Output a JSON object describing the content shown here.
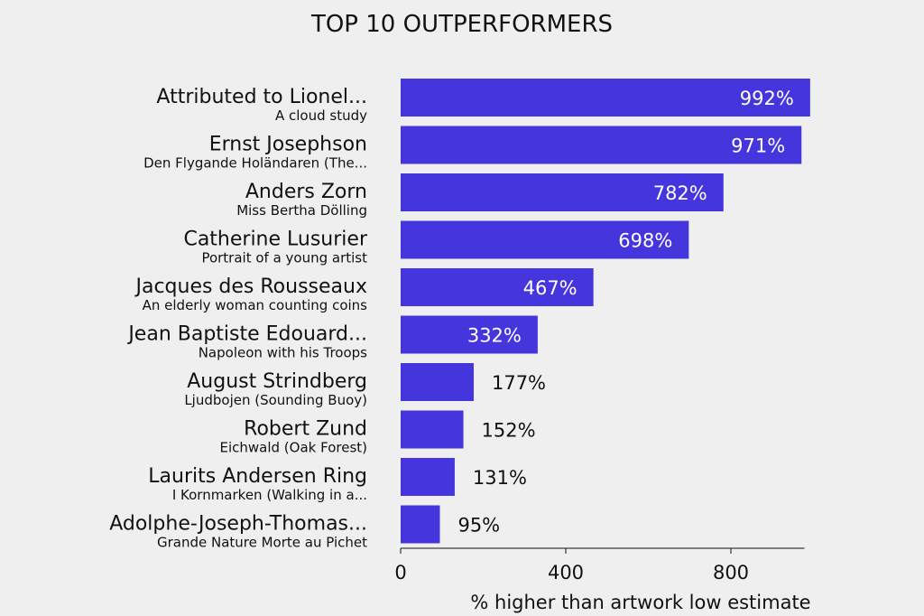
{
  "chart_data": {
    "type": "bar",
    "orientation": "horizontal",
    "title": "TOP 10 OUTPERFORMERS",
    "xlabel": "% higher than artwork low estimate",
    "ylabel": "",
    "xlim": [
      0,
      1000
    ],
    "xticks": [
      0,
      400,
      800
    ],
    "grid": false,
    "legend": "none",
    "bar_color": "#4535dd",
    "categories": [
      {
        "artist": "Attributed to Lionel...",
        "artwork": "A cloud study"
      },
      {
        "artist": "Ernst Josephson",
        "artwork": "Den Flygande Holändaren (The..."
      },
      {
        "artist": "Anders Zorn",
        "artwork": "Miss Bertha Dölling"
      },
      {
        "artist": "Catherine Lusurier",
        "artwork": "Portrait of a young artist"
      },
      {
        "artist": "Jacques des Rousseaux",
        "artwork": "An elderly woman counting coins"
      },
      {
        "artist": "Jean Baptiste Edouard...",
        "artwork": "Napoleon with his Troops"
      },
      {
        "artist": "August Strindberg",
        "artwork": "Ljudbojen (Sounding Buoy)"
      },
      {
        "artist": "Robert Zund",
        "artwork": "Eichwald (Oak Forest)"
      },
      {
        "artist": "Laurits Andersen Ring",
        "artwork": "I Kornmarken (Walking in a..."
      },
      {
        "artist": "Adolphe-Joseph-Thomas...",
        "artwork": "Grande Nature Morte au Pichet"
      }
    ],
    "values": [
      992,
      971,
      782,
      698,
      467,
      332,
      177,
      152,
      131,
      95
    ],
    "value_labels": [
      "992%",
      "971%",
      "782%",
      "698%",
      "467%",
      "332%",
      "177%",
      "152%",
      "131%",
      "95%"
    ]
  }
}
